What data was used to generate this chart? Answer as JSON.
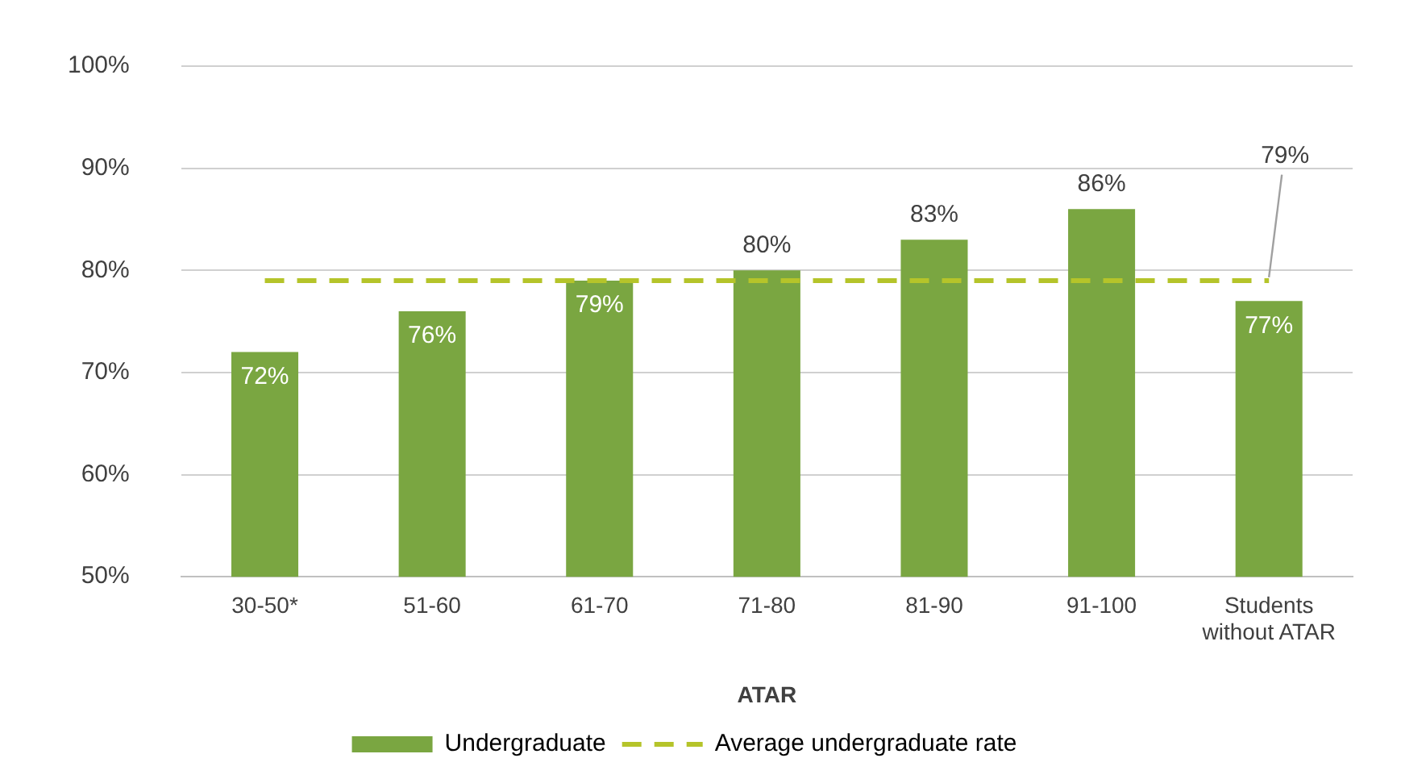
{
  "chart_data": {
    "type": "bar",
    "xlabel": "ATAR",
    "categories": [
      "30-50*",
      "51-60",
      "61-70",
      "71-80",
      "81-90",
      "91-100",
      "Students\nwithout ATAR"
    ],
    "series": [
      {
        "name": "Undergraduate",
        "color": "#7aa641",
        "values": [
          72,
          76,
          79,
          80,
          83,
          86,
          77
        ],
        "value_labels": [
          "72%",
          "76%",
          "79%",
          "80%",
          "83%",
          "86%",
          "77%"
        ]
      },
      {
        "name": "Average undergraduate rate",
        "type": "line",
        "color": "#b5c42a",
        "line_style": "dashed",
        "marker": "none",
        "values": [
          79,
          79,
          79,
          79,
          79,
          79,
          79
        ],
        "value_labels": [
          null,
          null,
          null,
          null,
          null,
          null,
          "79%"
        ]
      }
    ],
    "ylim": [
      50,
      100
    ],
    "yticks": [
      {
        "value": 50,
        "label": "50%"
      },
      {
        "value": 60,
        "label": "60%"
      },
      {
        "value": 70,
        "label": "70%"
      },
      {
        "value": 80,
        "label": "80%"
      },
      {
        "value": 90,
        "label": "90%"
      },
      {
        "value": 100,
        "label": "100%"
      }
    ],
    "grid": "y",
    "legend": "bottom"
  }
}
